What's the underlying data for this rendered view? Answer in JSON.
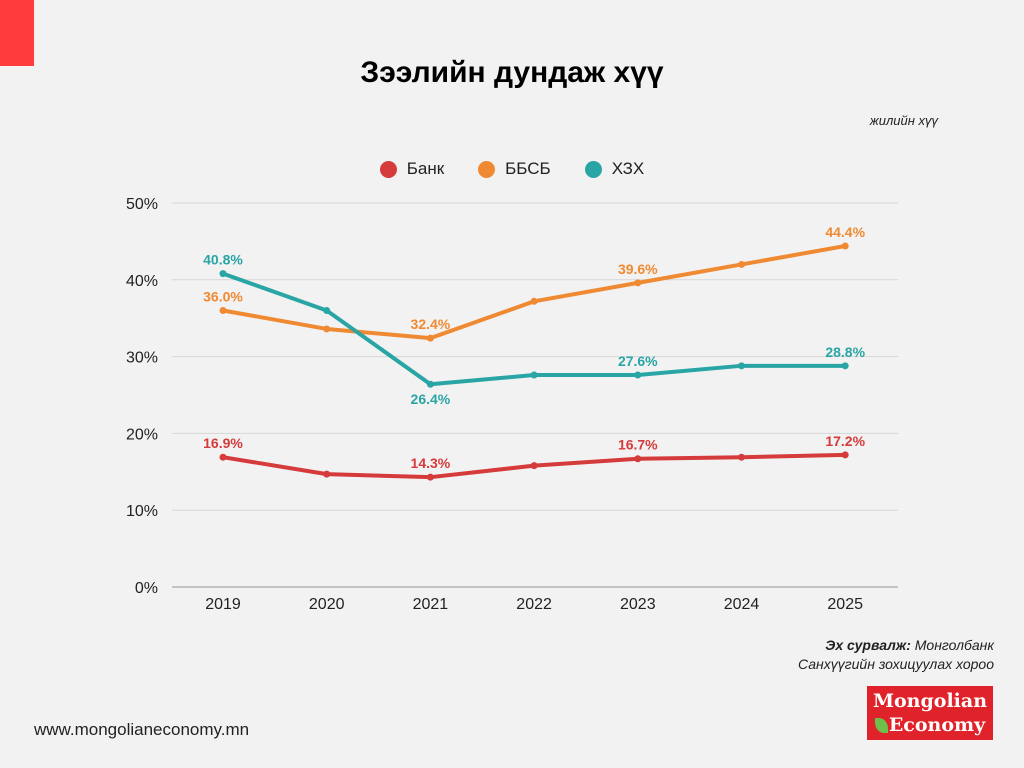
{
  "header": {
    "title": "Зээлийн дундаж хүү",
    "unit_label": "жилийн хүү"
  },
  "colors": {
    "accent": "#ff3b3b",
    "bank": "#d63b3b",
    "bbsb": "#f08a32",
    "hzh": "#2aa5a5"
  },
  "legend": [
    {
      "label": "Банк",
      "color": "#d63b3b"
    },
    {
      "label": "ББСБ",
      "color": "#f08a32"
    },
    {
      "label": "ХЗХ",
      "color": "#2aa5a5"
    }
  ],
  "chart_data": {
    "type": "line",
    "title": "Зээлийн дундаж хүү",
    "subtitle": "жилийн хүү",
    "xlabel": "",
    "ylabel": "",
    "x": [
      "2019",
      "2020",
      "2021",
      "2022",
      "2023",
      "2024",
      "2025"
    ],
    "ylim": [
      0,
      50
    ],
    "yticks": [
      0,
      10,
      20,
      30,
      40,
      50
    ],
    "ytick_labels": [
      "0%",
      "10%",
      "20%",
      "30%",
      "40%",
      "50%"
    ],
    "grid": true,
    "legend_position": "top-center",
    "series": [
      {
        "name": "Банк",
        "color": "#d63b3b",
        "values": [
          16.9,
          14.7,
          14.3,
          15.8,
          16.7,
          16.9,
          17.2
        ],
        "labels": [
          "16.9%",
          null,
          "14.3%",
          null,
          "16.7%",
          null,
          "17.2%"
        ],
        "label_position": "above"
      },
      {
        "name": "ББСБ",
        "color": "#f08a32",
        "values": [
          36.0,
          33.6,
          32.4,
          37.2,
          39.6,
          42.0,
          44.4
        ],
        "labels": [
          "36.0%",
          null,
          "32.4%",
          null,
          "39.6%",
          null,
          "44.4%"
        ],
        "label_position": "above"
      },
      {
        "name": "ХЗХ",
        "color": "#2aa5a5",
        "values": [
          40.8,
          36.0,
          26.4,
          27.6,
          27.6,
          28.8,
          28.8
        ],
        "labels": [
          "40.8%",
          null,
          "26.4%",
          null,
          "27.6%",
          null,
          "28.8%"
        ],
        "label_position": [
          "above",
          null,
          "below",
          null,
          "above",
          null,
          "above"
        ]
      }
    ]
  },
  "footer": {
    "source_label": "Эх сурвалж:",
    "source_line1": "Монголбанк",
    "source_line2": "Санхүүгийн зохицуулах хороо",
    "website": "www.mongolianeconomy.mn",
    "logo_line1": "Mongolian",
    "logo_line2": "Economy"
  }
}
